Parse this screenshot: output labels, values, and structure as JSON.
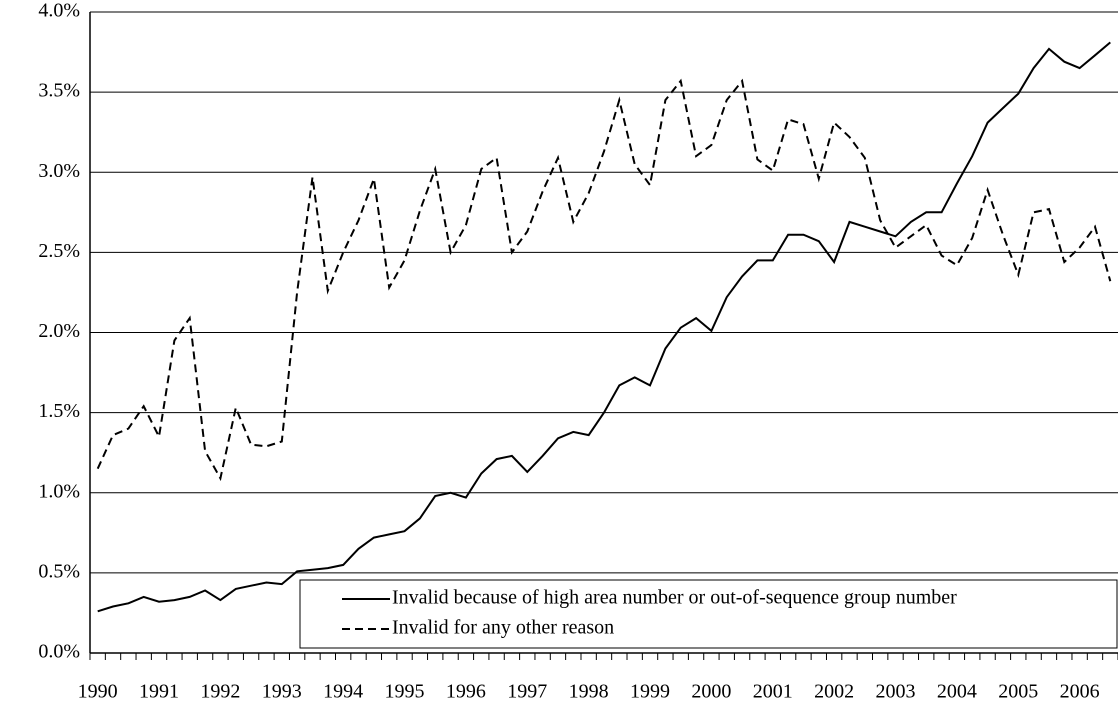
{
  "chart_data": {
    "type": "line",
    "categories": [
      "1990",
      null,
      null,
      null,
      "1991",
      null,
      null,
      null,
      "1992",
      null,
      null,
      null,
      "1993",
      null,
      null,
      null,
      "1994",
      null,
      null,
      null,
      "1995",
      null,
      null,
      null,
      "1996",
      null,
      null,
      null,
      "1997",
      null,
      null,
      null,
      "1998",
      null,
      null,
      null,
      "1999",
      null,
      null,
      null,
      "2000",
      null,
      null,
      null,
      "2001",
      null,
      null,
      null,
      "2002",
      null,
      null,
      null,
      "2003",
      null,
      null,
      null,
      "2004",
      null,
      null,
      null,
      "2005",
      null,
      null,
      null,
      "2006",
      null,
      null
    ],
    "series": [
      {
        "name": "Invalid because of high area number or out-of-sequence group number",
        "color": "#000000",
        "dash": "solid",
        "values": [
          0.26,
          0.29,
          0.31,
          0.35,
          0.32,
          0.33,
          0.35,
          0.39,
          0.33,
          0.4,
          0.42,
          0.44,
          0.43,
          0.51,
          0.52,
          0.53,
          0.55,
          0.65,
          0.72,
          0.74,
          0.76,
          0.84,
          0.98,
          1.0,
          0.97,
          1.12,
          1.21,
          1.23,
          1.13,
          1.23,
          1.34,
          1.38,
          1.36,
          1.5,
          1.67,
          1.72,
          1.67,
          1.9,
          2.03,
          2.09,
          2.01,
          2.22,
          2.35,
          2.45,
          2.45,
          2.61,
          2.61,
          2.57,
          2.44,
          2.69,
          2.66,
          2.63,
          2.6,
          2.69,
          2.75,
          2.75,
          2.93,
          3.1,
          3.31,
          3.4,
          3.49,
          3.65,
          3.77,
          3.69,
          3.65,
          3.73,
          3.81
        ]
      },
      {
        "name": "Invalid for any other reason",
        "color": "#000000",
        "dash": "dashed",
        "values": [
          1.15,
          1.36,
          1.4,
          1.54,
          1.35,
          1.95,
          2.09,
          1.26,
          1.09,
          1.53,
          1.3,
          1.29,
          1.32,
          2.25,
          2.97,
          2.26,
          2.5,
          2.7,
          2.96,
          2.28,
          2.45,
          2.76,
          3.02,
          2.5,
          2.67,
          3.02,
          3.09,
          2.5,
          2.63,
          2.88,
          3.09,
          2.69,
          2.87,
          3.13,
          3.45,
          3.05,
          2.92,
          3.45,
          3.57,
          3.1,
          3.17,
          3.45,
          3.57,
          3.08,
          3.01,
          3.33,
          3.3,
          2.96,
          3.31,
          3.22,
          3.09,
          2.7,
          2.53,
          2.6,
          2.67,
          2.48,
          2.42,
          2.59,
          2.89,
          2.61,
          2.36,
          2.75,
          2.77,
          2.44,
          2.53,
          2.66,
          2.32
        ]
      }
    ],
    "ylim": [
      0,
      4
    ],
    "yticks": [
      {
        "value": 0,
        "label": "0.0%"
      },
      {
        "value": 0.5,
        "label": "0.5%"
      },
      {
        "value": 1,
        "label": "1.0%"
      },
      {
        "value": 1.5,
        "label": "1.5%"
      },
      {
        "value": 2,
        "label": "2.0%"
      },
      {
        "value": 2.5,
        "label": "2.5%"
      },
      {
        "value": 3,
        "label": "3.0%"
      },
      {
        "value": 3.5,
        "label": "3.5%"
      },
      {
        "value": 4,
        "label": "4.0%"
      }
    ],
    "grid": true,
    "legend": "bottom-right"
  }
}
